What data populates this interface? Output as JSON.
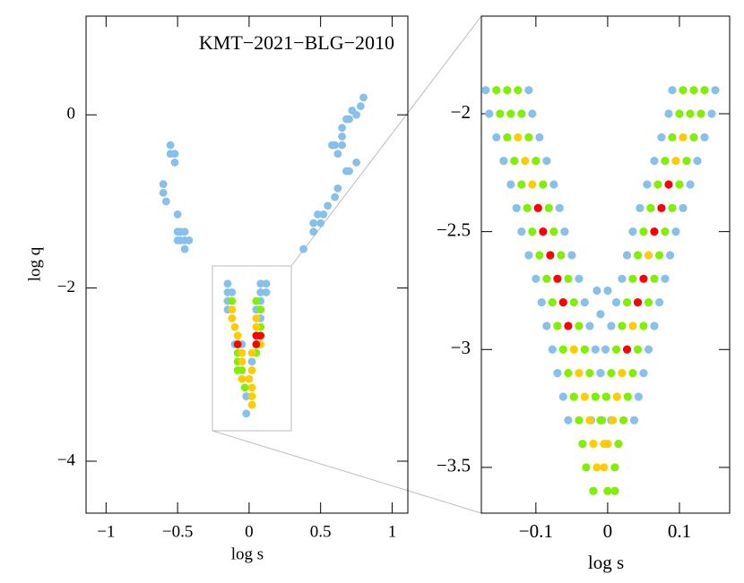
{
  "chart_data": [
    {
      "type": "scatter",
      "title": "KMT−2021−BLG−2010",
      "xlabel": "log s",
      "ylabel": "log q",
      "xlim": [
        -1.14,
        1.11
      ],
      "ylim": [
        -4.6,
        1.14
      ],
      "xticks": [
        {
          "value": -1,
          "label": "−1"
        },
        {
          "value": -0.5,
          "label": "−0.5"
        },
        0,
        0.5,
        1
      ],
      "yticks": [
        {
          "value": -4,
          "label": "−4"
        },
        {
          "value": -2,
          "label": "−2"
        },
        0
      ],
      "series": [
        {
          "color": "#87c0ea",
          "x": [
            -0.6,
            -0.6,
            -0.58,
            -0.55,
            -0.55,
            -0.52,
            -0.52,
            -0.5,
            -0.5,
            -0.5,
            -0.48,
            -0.48,
            -0.45,
            -0.45,
            -0.45,
            -0.42,
            0.38,
            0.45,
            0.45,
            0.48,
            0.5,
            0.52,
            0.55,
            0.58,
            0.6,
            0.6,
            0.62,
            0.62,
            0.65,
            0.65,
            0.65,
            0.68,
            0.68,
            0.7,
            0.7,
            0.72,
            0.75,
            0.75,
            0.78,
            0.8,
            -0.15,
            -0.12,
            -0.15,
            -0.15,
            -0.15,
            -0.1,
            -0.05,
            -0.02,
            -0.02,
            0.08,
            0.12,
            0.08,
            0.12,
            0.08,
            0.05,
            0.08,
            0.08,
            0.02
          ],
          "y": [
            -0.8,
            -0.9,
            -1.0,
            -0.35,
            -0.45,
            -0.45,
            -0.55,
            -1.15,
            -1.35,
            -1.45,
            -1.35,
            -1.45,
            -1.35,
            -1.45,
            -1.55,
            -1.45,
            -1.55,
            -1.35,
            -1.25,
            -1.15,
            -1.25,
            -1.15,
            -1.05,
            -0.35,
            -0.35,
            -0.95,
            -0.85,
            -0.45,
            -0.25,
            -0.35,
            -0.15,
            -0.05,
            -0.65,
            -0.05,
            -0.65,
            0.05,
            0.0,
            -0.55,
            0.1,
            0.2,
            -1.95,
            -2.05,
            -2.05,
            -2.15,
            -2.25,
            -2.65,
            -2.65,
            -3.25,
            -3.45,
            -1.95,
            -1.95,
            -2.05,
            -2.05,
            -2.15,
            -2.25,
            -2.35,
            -2.25,
            -2.85
          ]
        },
        {
          "color": "#7ef000",
          "x": [
            -0.12,
            -0.08,
            -0.08,
            -0.08,
            -0.05,
            -0.03,
            0.05,
            0.08,
            0.08,
            0.05
          ],
          "y": [
            -2.15,
            -2.75,
            -2.85,
            -2.95,
            -2.95,
            -3.15,
            -2.15,
            -2.25,
            -2.45,
            -2.75
          ]
        },
        {
          "color": "#ffcc00",
          "x": [
            -0.12,
            -0.12,
            -0.1,
            -0.08,
            -0.05,
            -0.05,
            -0.05,
            0.05,
            0.05,
            0.08,
            0.02,
            0.02,
            0.0,
            0.02,
            0.02,
            0.02
          ],
          "y": [
            -2.25,
            -2.35,
            -2.45,
            -2.55,
            -2.75,
            -2.85,
            -3.05,
            -2.35,
            -2.45,
            -2.65,
            -2.75,
            -2.95,
            -3.05,
            -3.15,
            -3.25,
            -3.35
          ]
        },
        {
          "color": "#ff0000",
          "x": [
            -0.08,
            0.05,
            0.08,
            0.05
          ],
          "y": [
            -2.65,
            -2.55,
            -2.55,
            -2.65
          ]
        }
      ]
    },
    {
      "type": "scatter",
      "xlabel": "log s",
      "xlim": [
        -0.176,
        0.17
      ],
      "ylim": [
        -3.694,
        -1.586
      ],
      "xticks": [
        {
          "value": -0.1,
          "label": "−0.1"
        },
        0,
        0.1
      ],
      "yticks": [
        {
          "value": -3.5,
          "label": "−3.5"
        },
        {
          "value": -3,
          "label": "−3"
        },
        {
          "value": -2.5,
          "label": "−2.5"
        },
        {
          "value": -2,
          "label": "−2"
        }
      ],
      "series": [
        {
          "color": "#87c0ea",
          "x": [
            -0.17,
            -0.11,
            0.09,
            0.15,
            -0.165,
            -0.105,
            0.085,
            0.145,
            -0.155,
            -0.095,
            0.075,
            0.135,
            -0.145,
            -0.085,
            0.065,
            0.125,
            -0.135,
            -0.075,
            0.055,
            0.115,
            -0.127,
            -0.067,
            0.045,
            0.105,
            -0.12,
            -0.06,
            0.035,
            0.095,
            -0.11,
            -0.05,
            0.027,
            0.087,
            -0.1,
            -0.04,
            0.02,
            0.08,
            -0.092,
            -0.032,
            0.012,
            0.072,
            -0.085,
            -0.025,
            0.005,
            0.065,
            -0.077,
            -0.017,
            -0.003,
            0.057,
            -0.07,
            -0.01,
            -0.01,
            0.05,
            -0.062,
            -0.002,
            -0.017,
            0.043,
            -0.055,
            0.005,
            -0.023,
            0.037,
            -0.015,
            0.0,
            -0.01
          ],
          "y": [
            -1.9,
            -1.9,
            -1.9,
            -1.9,
            -2.0,
            -2.0,
            -2.0,
            -2.0,
            -2.1,
            -2.1,
            -2.1,
            -2.1,
            -2.2,
            -2.2,
            -2.2,
            -2.2,
            -2.3,
            -2.3,
            -2.3,
            -2.3,
            -2.4,
            -2.4,
            -2.4,
            -2.4,
            -2.5,
            -2.5,
            -2.5,
            -2.5,
            -2.6,
            -2.6,
            -2.6,
            -2.6,
            -2.7,
            -2.7,
            -2.7,
            -2.7,
            -2.8,
            -2.8,
            -2.8,
            -2.8,
            -2.9,
            -2.9,
            -2.9,
            -2.9,
            -3.0,
            -3.0,
            -3.0,
            -3.0,
            -3.1,
            -3.1,
            -3.1,
            -3.1,
            -3.2,
            -3.2,
            -3.2,
            -3.2,
            -3.3,
            -3.3,
            -3.3,
            -3.3,
            -2.75,
            -2.75,
            -2.85
          ]
        },
        {
          "color": "#7ef000",
          "x": [
            -0.155,
            -0.125,
            0.105,
            0.135,
            -0.15,
            -0.12,
            0.1,
            0.13,
            -0.14,
            -0.11,
            0.09,
            0.12,
            -0.13,
            -0.1,
            0.08,
            0.11,
            -0.12,
            -0.09,
            0.07,
            0.1,
            -0.112,
            -0.082,
            0.06,
            0.09,
            -0.105,
            -0.075,
            0.05,
            0.08,
            -0.095,
            -0.065,
            0.042,
            0.072,
            -0.085,
            -0.055,
            0.035,
            0.065,
            -0.077,
            -0.047,
            0.027,
            0.057,
            -0.07,
            -0.04,
            0.02,
            0.05,
            -0.062,
            -0.032,
            0.012,
            0.042,
            -0.055,
            -0.025,
            0.005,
            0.035,
            -0.047,
            -0.017,
            -0.002,
            0.028,
            -0.04,
            -0.01,
            -0.008,
            0.022,
            -0.035,
            0.015,
            -0.03,
            0.01,
            -0.02,
            0.0,
            0.01,
            -0.14,
            0.12,
            -0.135,
            0.115
          ],
          "y": [
            -1.9,
            -1.9,
            -1.9,
            -1.9,
            -2.0,
            -2.0,
            -2.0,
            -2.0,
            -2.1,
            -2.1,
            -2.1,
            -2.1,
            -2.2,
            -2.2,
            -2.2,
            -2.2,
            -2.3,
            -2.3,
            -2.3,
            -2.3,
            -2.4,
            -2.4,
            -2.4,
            -2.4,
            -2.5,
            -2.5,
            -2.5,
            -2.5,
            -2.6,
            -2.6,
            -2.6,
            -2.6,
            -2.7,
            -2.7,
            -2.7,
            -2.7,
            -2.8,
            -2.8,
            -2.8,
            -2.8,
            -2.9,
            -2.9,
            -2.9,
            -2.9,
            -3.0,
            -3.0,
            -3.0,
            -3.0,
            -3.1,
            -3.1,
            -3.1,
            -3.1,
            -3.2,
            -3.2,
            -3.2,
            -3.2,
            -3.3,
            -3.3,
            -3.3,
            -3.3,
            -3.4,
            -3.4,
            -3.5,
            -3.5,
            -3.6,
            -3.6,
            -3.6,
            -1.9,
            -1.9,
            -2.0,
            -2.0
          ]
        },
        {
          "color": "#ffcc00",
          "x": [
            -0.125,
            0.105,
            -0.115,
            0.095,
            -0.105,
            0.057,
            0.035,
            -0.047,
            -0.04,
            0.02,
            -0.032,
            0.013,
            -0.025,
            0.007,
            -0.02,
            -0.005,
            0.0,
            -0.015,
            -0.005
          ],
          "y": [
            -2.1,
            -2.1,
            -2.2,
            -2.2,
            -2.3,
            -2.6,
            -2.9,
            -3.0,
            -3.1,
            -3.1,
            -3.2,
            -3.2,
            -3.3,
            -3.3,
            -3.4,
            -3.4,
            -3.4,
            -3.5,
            -3.5
          ]
        },
        {
          "color": "#ff0000",
          "x": [
            -0.097,
            -0.09,
            -0.08,
            -0.07,
            -0.062,
            -0.055,
            0.085,
            0.075,
            0.065,
            0.05,
            0.042,
            0.027
          ],
          "y": [
            -2.4,
            -2.5,
            -2.6,
            -2.7,
            -2.8,
            -2.9,
            -2.3,
            -2.4,
            -2.5,
            -2.7,
            -2.8,
            -3.0
          ]
        }
      ]
    }
  ]
}
